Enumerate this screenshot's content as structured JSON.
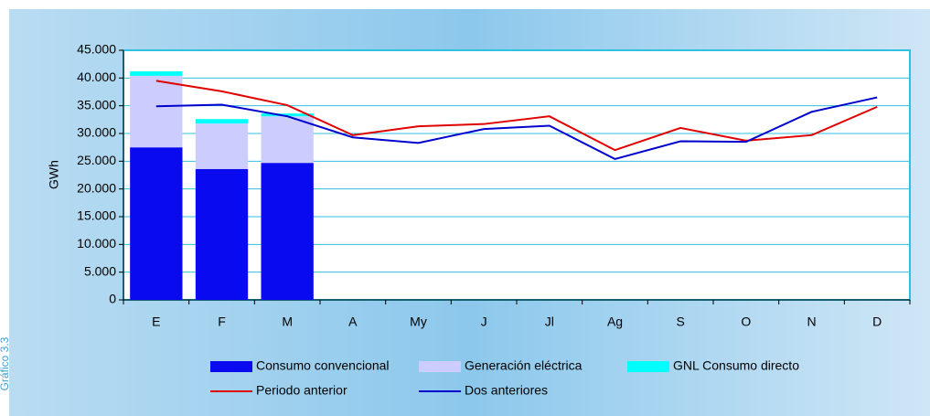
{
  "chart_data": {
    "type": "bar",
    "stacked": true,
    "side_label": "Gráfico 3.3",
    "y_label": "GWh",
    "categories": [
      "E",
      "F",
      "M",
      "A",
      "My",
      "J",
      "Jl",
      "Ag",
      "S",
      "O",
      "N",
      "D"
    ],
    "series": [
      {
        "name": "Consumo convencional",
        "type": "bar",
        "color": "#0a0af0",
        "values": [
          27500,
          23600,
          24700,
          null,
          null,
          null,
          null,
          null,
          null,
          null,
          null,
          null
        ]
      },
      {
        "name": "Generación eléctrica",
        "type": "bar",
        "color": "#ccccff",
        "values": [
          12900,
          8200,
          8400,
          null,
          null,
          null,
          null,
          null,
          null,
          null,
          null,
          null
        ]
      },
      {
        "name": "GNL Consumo directo",
        "type": "bar",
        "color": "#00ffff",
        "values": [
          800,
          800,
          500,
          null,
          null,
          null,
          null,
          null,
          null,
          null,
          null,
          null
        ]
      },
      {
        "name": "Periodo anterior",
        "type": "line",
        "color": "#e00000",
        "values": [
          39500,
          37600,
          35100,
          29700,
          31300,
          31700,
          33100,
          27000,
          31000,
          28700,
          29700,
          34800
        ]
      },
      {
        "name": "Dos anteriores",
        "type": "line",
        "color": "#0000cc",
        "values": [
          34900,
          35200,
          33100,
          29300,
          28300,
          30800,
          31400,
          25400,
          28600,
          28500,
          33900,
          36500
        ]
      }
    ],
    "ylim": [
      0,
      45000
    ],
    "yticks": [
      0,
      {
        "value": 5000,
        "label": "5.000"
      },
      {
        "value": 10000,
        "label": "10.000"
      },
      {
        "value": 15000,
        "label": "15.000"
      },
      {
        "value": 20000,
        "label": "20.000"
      },
      {
        "value": 25000,
        "label": "25.000"
      },
      {
        "value": 30000,
        "label": "30.000"
      },
      {
        "value": 35000,
        "label": "35.000"
      },
      {
        "value": 40000,
        "label": "40.000"
      },
      {
        "value": 45000,
        "label": "45.000"
      }
    ],
    "grid": true,
    "legend": "bottom"
  }
}
